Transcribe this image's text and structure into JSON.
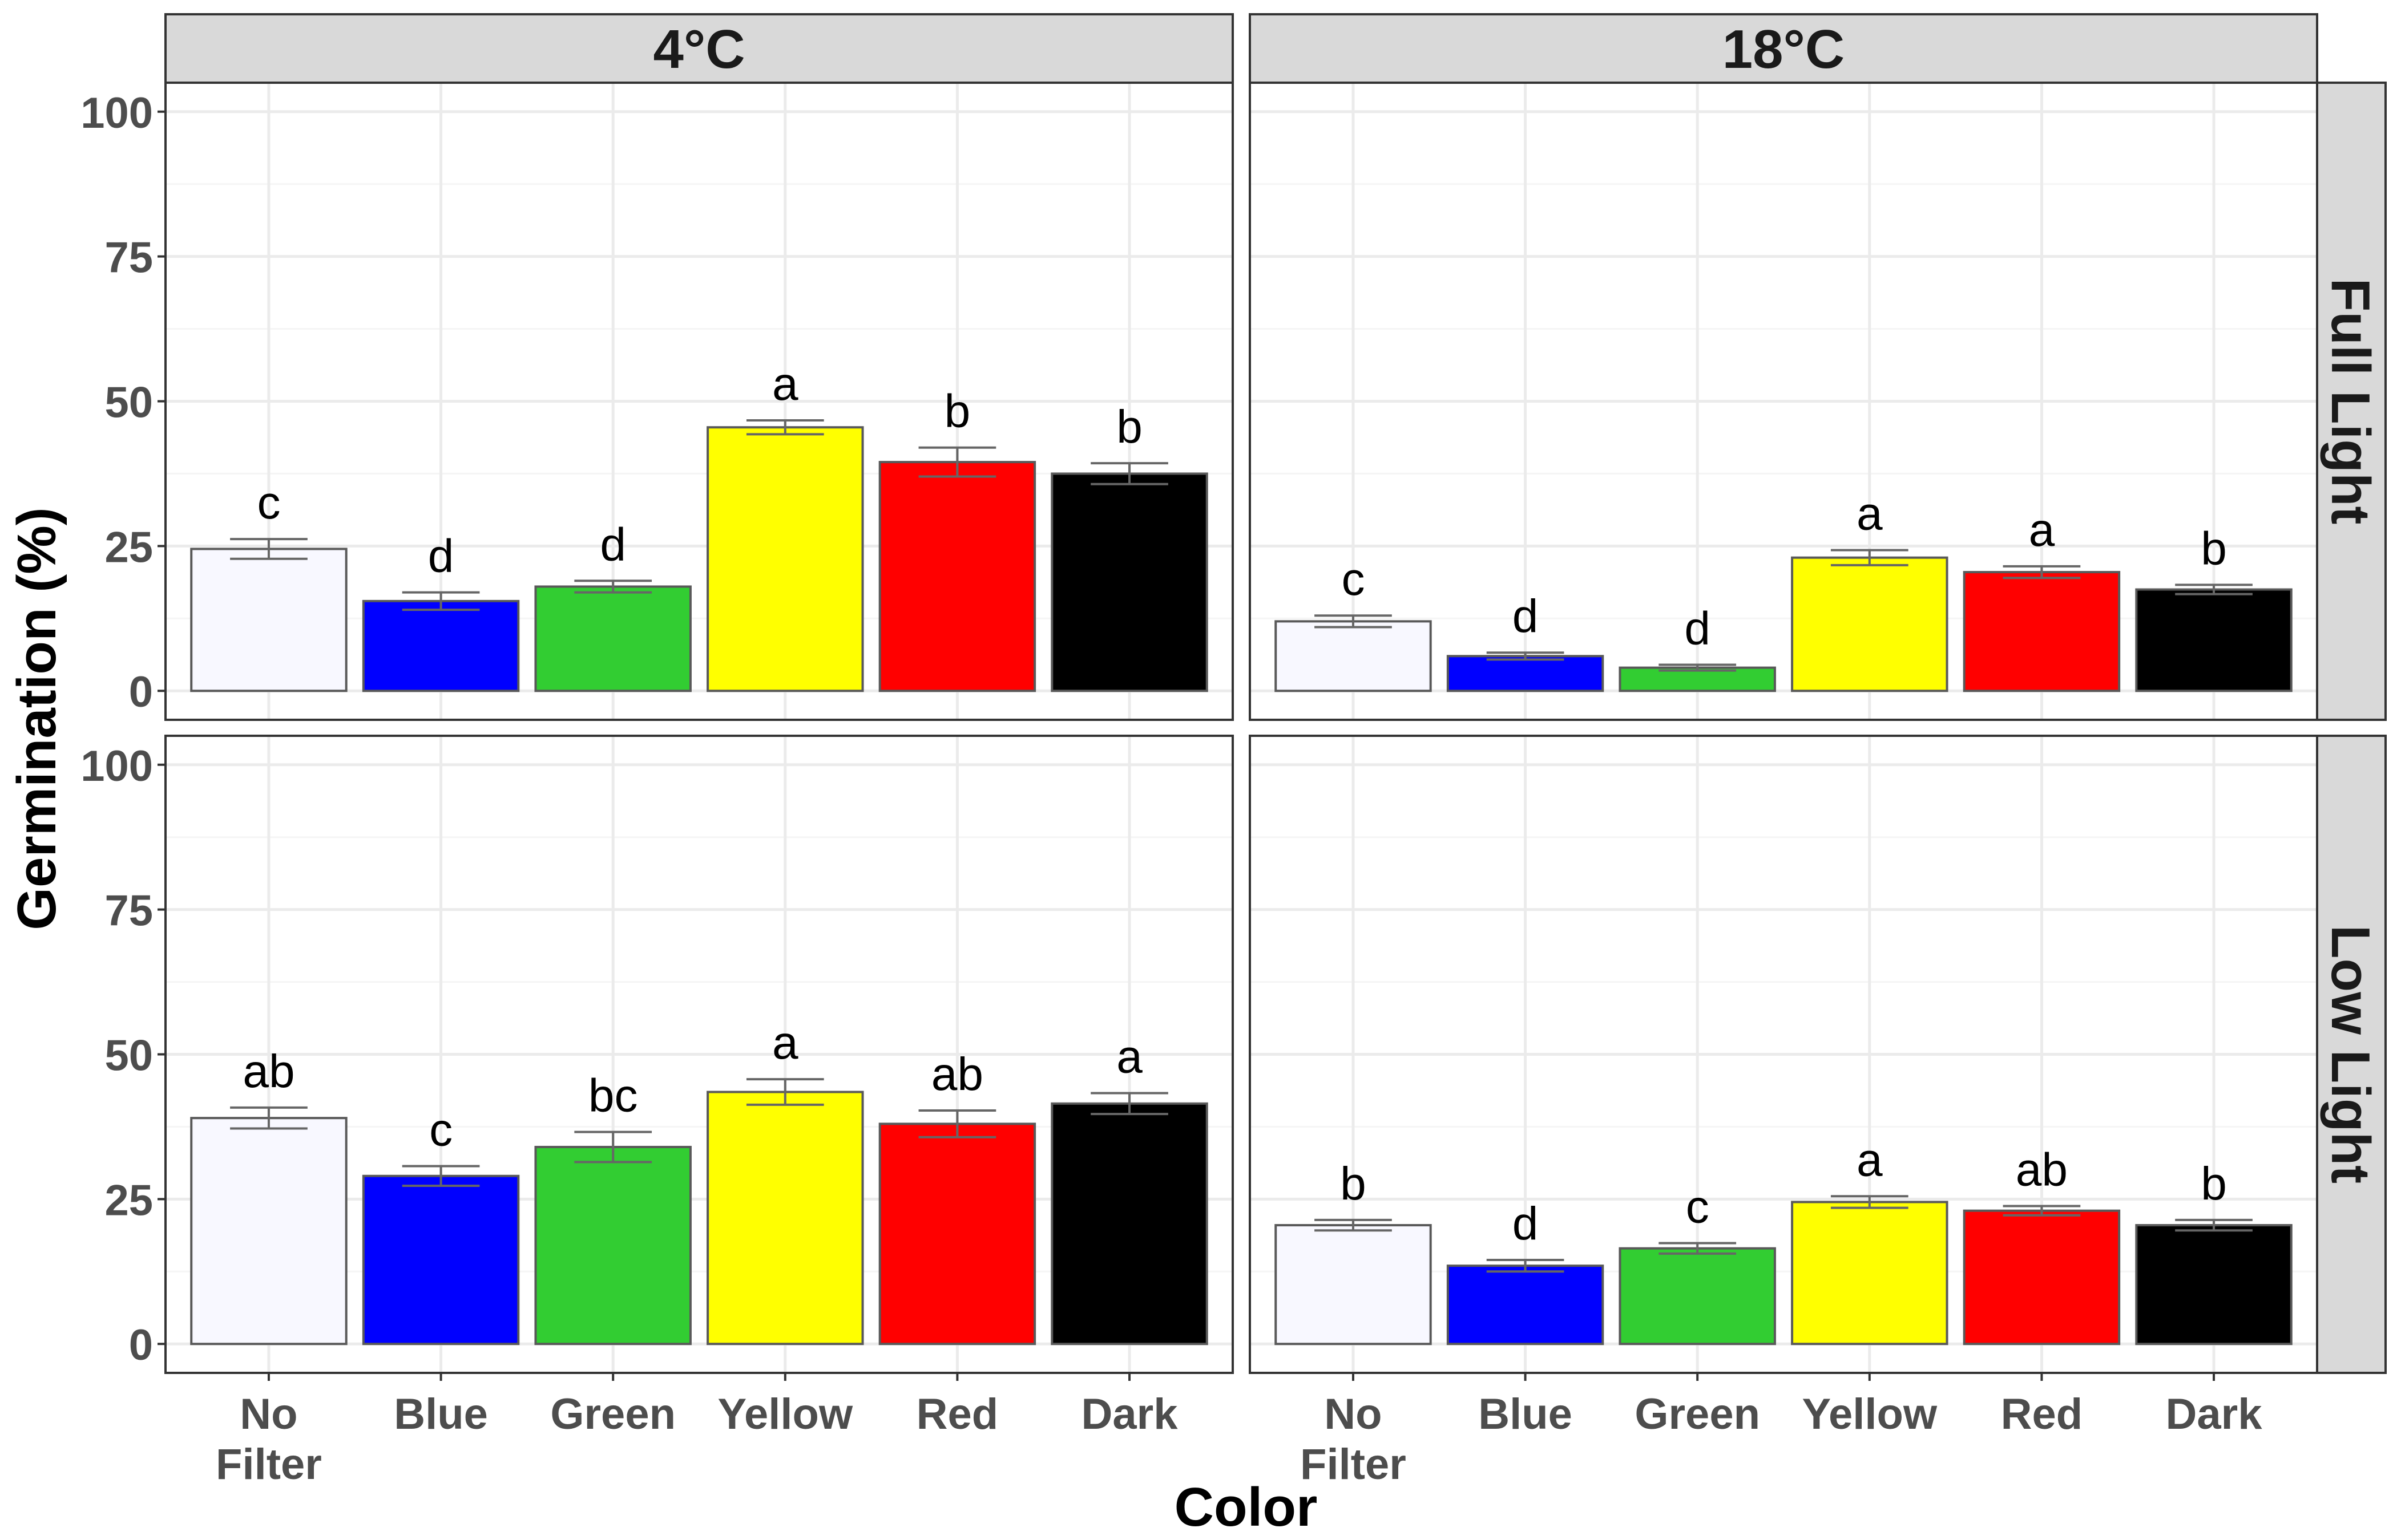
{
  "chart_data": {
    "type": "bar",
    "xlabel": "Color",
    "ylabel": "Germination (%)",
    "ylim": [
      -5,
      105
    ],
    "yticks": [
      0,
      25,
      50,
      75,
      100
    ],
    "grid": true,
    "categories": [
      {
        "lines": [
          "No",
          "Filter"
        ],
        "color": "#f8f8ff"
      },
      {
        "lines": [
          "Blue"
        ],
        "color": "#0000ff"
      },
      {
        "lines": [
          "Green"
        ],
        "color": "#32cd32"
      },
      {
        "lines": [
          "Yellow"
        ],
        "color": "#ffff00"
      },
      {
        "lines": [
          "Red"
        ],
        "color": "#ff0000"
      },
      {
        "lines": [
          "Dark"
        ],
        "color": "#000000"
      }
    ],
    "column_facets": [
      "4°C",
      "18°C"
    ],
    "row_facets": [
      "Full Light",
      "Low Light"
    ],
    "panels": [
      {
        "column": "4°C",
        "row": "Full Light",
        "values": [
          24.5,
          15.5,
          18,
          45.5,
          39.5,
          37.5
        ],
        "errors": [
          1.7,
          1.5,
          1.0,
          1.2,
          2.5,
          1.8
        ],
        "letters": [
          "c",
          "d",
          "d",
          "a",
          "b",
          "b"
        ]
      },
      {
        "column": "18°C",
        "row": "Full Light",
        "values": [
          12,
          6,
          4,
          23,
          20.5,
          17.5
        ],
        "errors": [
          1.0,
          0.6,
          0.5,
          1.3,
          1.0,
          0.8
        ],
        "letters": [
          "c",
          "d",
          "d",
          "a",
          "a",
          "b"
        ]
      },
      {
        "column": "4°C",
        "row": "Low Light",
        "values": [
          39,
          29,
          34,
          43.5,
          38,
          41.5
        ],
        "errors": [
          1.8,
          1.7,
          2.6,
          2.2,
          2.3,
          1.8
        ],
        "letters": [
          "ab",
          "c",
          "bc",
          "a",
          "ab",
          "a"
        ]
      },
      {
        "column": "18°C",
        "row": "Low Light",
        "values": [
          20.5,
          13.5,
          16.5,
          24.5,
          23,
          20.5
        ],
        "errors": [
          0.9,
          1.0,
          0.9,
          1.0,
          0.8,
          0.9
        ],
        "letters": [
          "b",
          "d",
          "c",
          "a",
          "ab",
          "b"
        ]
      }
    ],
    "colors": {
      "panel_border": "#333333",
      "strip_fill": "#d9d9d9",
      "grid_major": "#ebebeb",
      "grid_minor": "#f5f5f5",
      "bar_outline": "#595959",
      "error_bar": "#666666"
    }
  }
}
